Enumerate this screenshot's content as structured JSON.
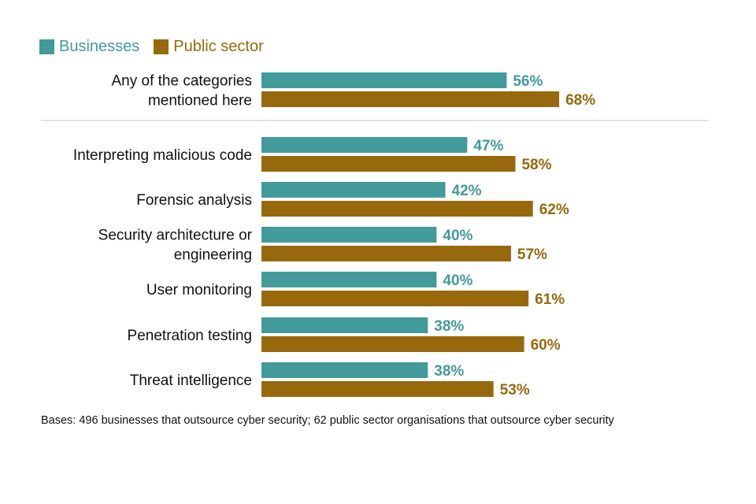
{
  "colors": {
    "businesses": "#429a9a",
    "public_sector": "#97690c",
    "separator": "#d9d9d9"
  },
  "legend": [
    {
      "name": "Businesses",
      "color": "#429a9a"
    },
    {
      "name": "Public sector",
      "color": "#97690c"
    }
  ],
  "chart_data": {
    "type": "bar",
    "orientation": "horizontal",
    "value_suffix": "%",
    "categories": [
      [
        "Any of the categories",
        "mentioned here"
      ],
      [
        "Interpreting malicious code"
      ],
      [
        "Forensic analysis"
      ],
      [
        "Security architecture or",
        "engineering"
      ],
      [
        "User monitoring"
      ],
      [
        "Penetration testing"
      ],
      [
        "Threat intelligence"
      ]
    ],
    "series": [
      {
        "name": "Businesses",
        "color": "#429a9a",
        "values": [
          56,
          47,
          42,
          40,
          40,
          38,
          38
        ]
      },
      {
        "name": "Public sector",
        "color": "#97690c",
        "values": [
          68,
          58,
          62,
          57,
          61,
          60,
          53
        ]
      }
    ],
    "separator_after_index": 0,
    "xlim": [
      0,
      100
    ],
    "gridlines": false,
    "legend_position": "top-left"
  },
  "footnote": "Bases: 496 businesses that outsource cyber security; 62 public sector organisations that outsource cyber security"
}
